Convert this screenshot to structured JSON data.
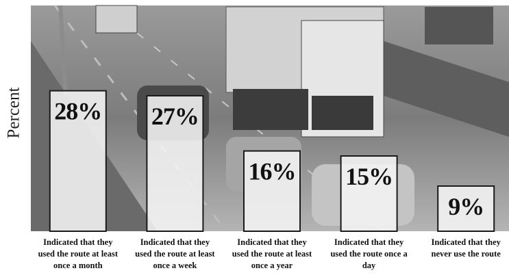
{
  "chart_data": {
    "type": "bar",
    "ylabel": "Percent",
    "categories": [
      "Indicated that they used the route at least once a month",
      "Indicated that they used the route at least once a week",
      "Indicated that they used the route at least once a year",
      "Indicated that they used the route once a day",
      "Indicated that they never use the route"
    ],
    "values": [
      28,
      27,
      16,
      15,
      9
    ],
    "value_labels": [
      "28%",
      "27%",
      "16%",
      "15%",
      "9%"
    ],
    "color": "#f4f4f4",
    "ylim": [
      0,
      45
    ]
  }
}
